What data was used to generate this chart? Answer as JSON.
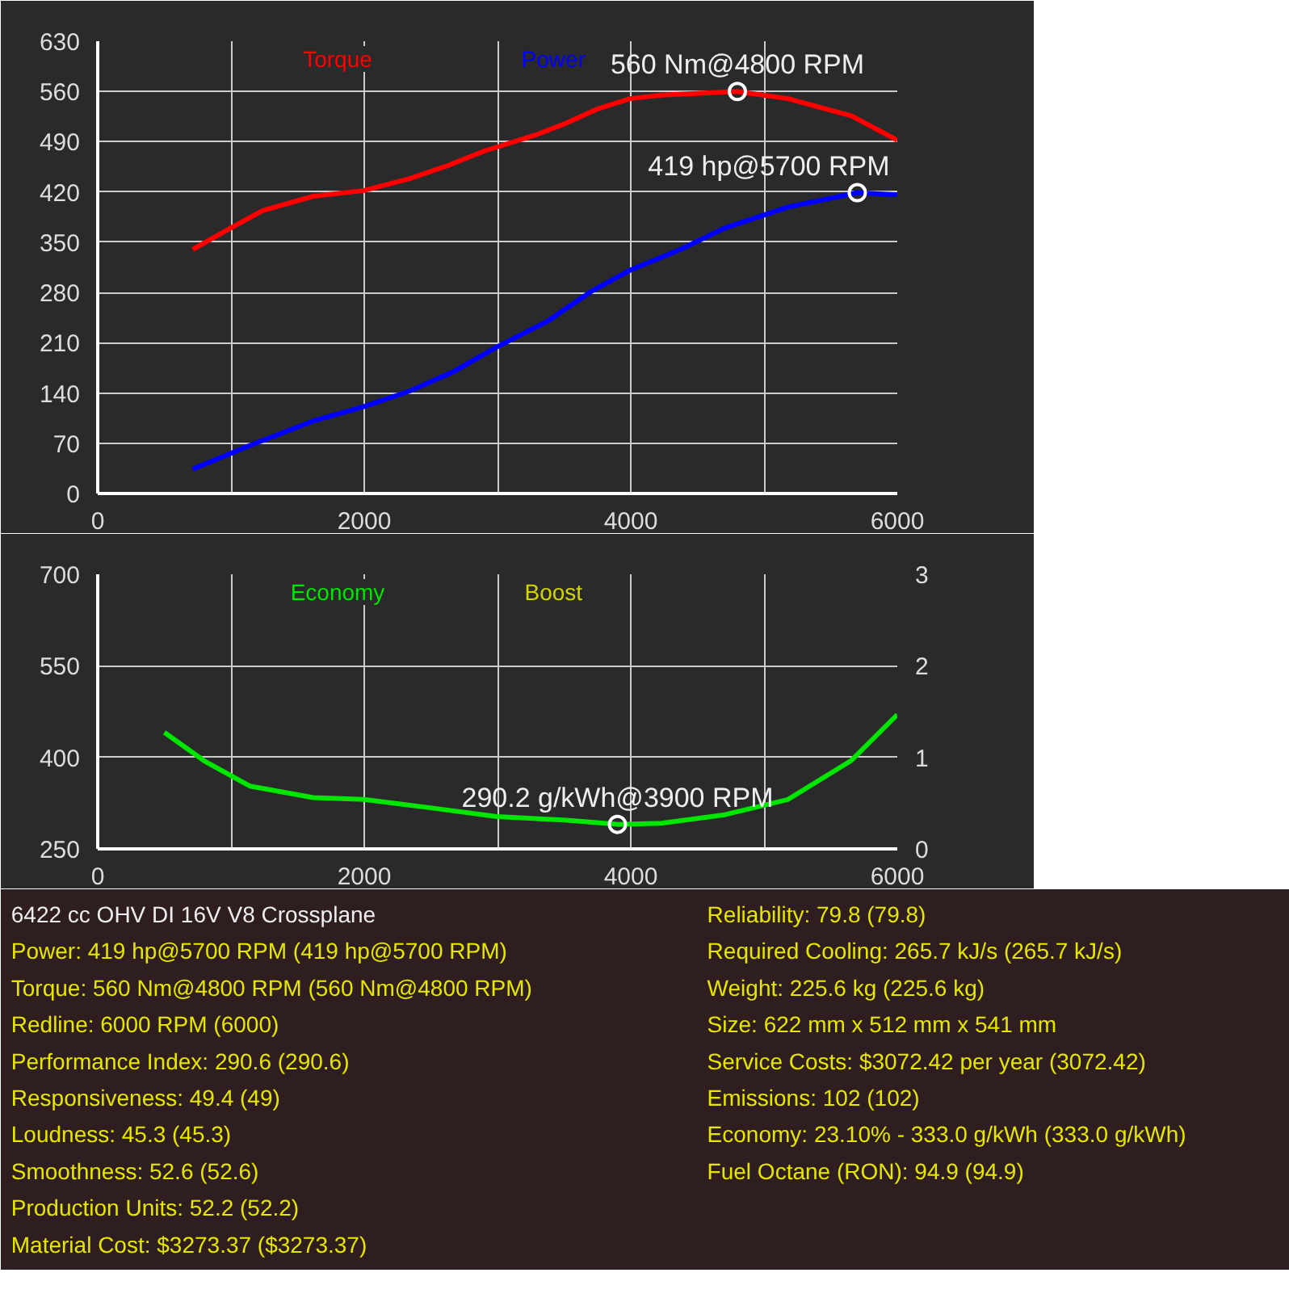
{
  "chart_data": [
    {
      "type": "line",
      "xlim": [
        0,
        6000
      ],
      "ylim": [
        0,
        630
      ],
      "xticks": [
        0,
        {
          "value": 1000,
          "label": null
        },
        2000,
        {
          "value": 3000,
          "label": null
        },
        4000,
        {
          "value": 5000,
          "label": null
        },
        6000
      ],
      "yticks": [
        0,
        70,
        140,
        210,
        280,
        350,
        420,
        490,
        560,
        630
      ],
      "grid": true,
      "series": [
        {
          "name": "Torque",
          "color": "#ff0000",
          "x": [
            713,
            1000,
            1236,
            1617,
            1997,
            2330,
            2615,
            2900,
            3280,
            3518,
            3756,
            3994,
            4231,
            4800,
            5180,
            5656,
            6000
          ],
          "values": [
            340,
            370,
            394,
            414,
            422,
            438,
            456,
            477,
            499,
            516,
            536,
            550,
            555,
            560,
            550,
            526,
            492
          ]
        },
        {
          "name": "Power",
          "color": "#0000ff",
          "x": [
            713,
            1141,
            1617,
            1997,
            2330,
            2662,
            2995,
            3376,
            3708,
            3994,
            4374,
            4707,
            5180,
            5700,
            6000
          ],
          "values": [
            34,
            67,
            101,
            121,
            142,
            169,
            204,
            240,
            282,
            311,
            340,
            370,
            399,
            419,
            416
          ]
        }
      ],
      "annotations": [
        {
          "text": "560 Nm@4800 RPM",
          "x": 4800,
          "y": 560
        },
        {
          "text": "419 hp@5700 RPM",
          "x": 5700,
          "y": 419
        }
      ]
    },
    {
      "type": "line",
      "xlim": [
        0,
        6000
      ],
      "ylim": [
        250,
        700
      ],
      "y2lim": [
        0,
        3
      ],
      "xticks": [
        0,
        {
          "value": 1000,
          "label": null
        },
        2000,
        {
          "value": 3000,
          "label": null
        },
        4000,
        {
          "value": 5000,
          "label": null
        },
        6000
      ],
      "yticks": [
        250,
        400,
        550,
        700
      ],
      "y2ticks": [
        0,
        1,
        2,
        3
      ],
      "grid": true,
      "series": [
        {
          "name": "Economy",
          "color": "#00e600",
          "x": [
            500,
            808,
            1141,
            1617,
            1997,
            2472,
            2995,
            3518,
            3900,
            4231,
            4707,
            5180,
            5656,
            6000
          ],
          "values": [
            441,
            393,
            353,
            334,
            331,
            318,
            303,
            297,
            290.2,
            292,
            306,
            331,
            395,
            470
          ]
        },
        {
          "name": "Boost",
          "color": "#d4d400"
        }
      ],
      "annotations": [
        {
          "text": "290.2 g/kWh@3900 RPM",
          "x": 3900,
          "y": 290.2
        }
      ]
    },
    {
      "type": "other",
      "annotations": [
        "6422 cc OHV DI 16V V8 Crossplane",
        "Reliability: 79.8 (79.8)",
        "Power: 419 hp@5700 RPM (419 hp@5700 RPM)",
        "Required Cooling: 265.7 kJ/s (265.7 kJ/s)",
        "Torque: 560 Nm@4800 RPM (560 Nm@4800 RPM)",
        "Weight: 225.6 kg (225.6 kg)",
        "Redline: 6000 RPM (6000)",
        "Size: 622 mm x 512 mm x 541 mm",
        "Performance Index: 290.6 (290.6)",
        "Service Costs: $3072.42 per year (3072.42)",
        "Responsiveness: 49.4 (49)",
        "Emissions: 102 (102)",
        "Loudness: 45.3 (45.3)",
        "Economy: 23.10% - 333.0 g/kWh (333.0 g/kWh)",
        "Smoothness: 52.6 (52.6)",
        "Fuel Octane (RON): 94.9 (94.9)",
        "Production Units: 52.2 (52.2)",
        "Material Cost: $3273.37 ($3273.37)"
      ]
    }
  ]
}
